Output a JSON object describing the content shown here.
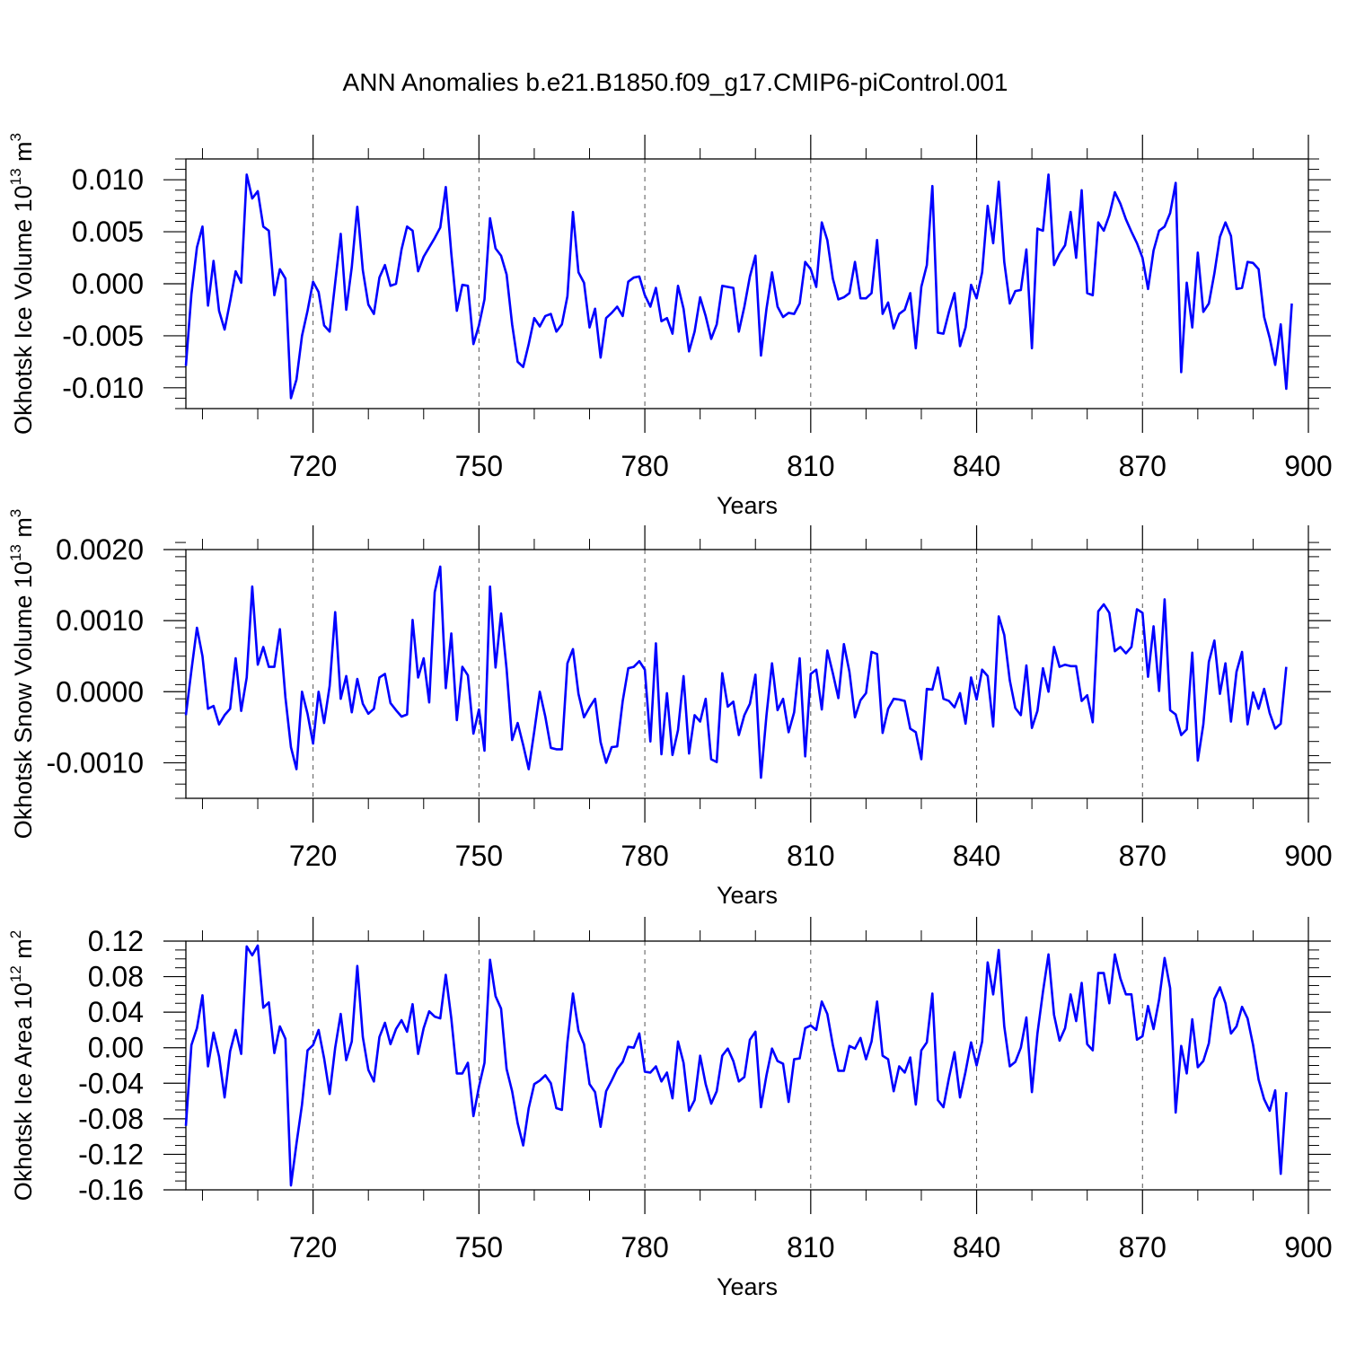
{
  "title": "ANN Anomalies b.e21.B1850.f09_g17.CMIP6-piControl.001",
  "line_color": "#0000ff",
  "chart_data": [
    {
      "type": "line",
      "ylabel_main": "Okhotsk Ice Volume 10",
      "ylabel_exp": "13",
      "ylabel_unit": " m",
      "ylabel_unit_exp": "3",
      "xlabel": "Years",
      "xlim": [
        697,
        900
      ],
      "ylim": [
        -0.012,
        0.012
      ],
      "xticks": [
        720,
        750,
        780,
        810,
        840,
        870,
        900
      ],
      "xtick_labels": [
        "720",
        "750",
        "780",
        "810",
        "840",
        "870",
        "900"
      ],
      "yticks": [
        -0.01,
        -0.005,
        0.0,
        0.005,
        0.01
      ],
      "ytick_labels": [
        "-0.010",
        "-0.005",
        "0.000",
        "0.005",
        "0.010"
      ],
      "yminor": 0.001,
      "x_start": 697,
      "values": [
        -0.0079,
        -0.001,
        0.0035,
        0.0055,
        -0.0021,
        0.0022,
        -0.0026,
        -0.0044,
        -0.0017,
        0.0012,
        0.0001,
        0.0105,
        0.0082,
        0.0089,
        0.0055,
        0.0051,
        -0.0011,
        0.0014,
        0.0005,
        -0.011,
        -0.0092,
        -0.005,
        -0.0026,
        0.0002,
        -0.0008,
        -0.004,
        -0.0046,
        0.0001,
        0.0048,
        -0.0025,
        0.0016,
        0.0074,
        0.0013,
        -0.002,
        -0.0029,
        0.0006,
        0.0018,
        -0.0002,
        0.0,
        0.0033,
        0.0055,
        0.0051,
        0.0012,
        0.0026,
        0.0035,
        0.0044,
        0.0054,
        0.0093,
        0.0029,
        -0.0026,
        -0.0001,
        -0.0002,
        -0.0058,
        -0.004,
        -0.0015,
        0.0063,
        0.0034,
        0.0027,
        0.0009,
        -0.0039,
        -0.0075,
        -0.008,
        -0.0058,
        -0.0033,
        -0.0041,
        -0.0031,
        -0.0029,
        -0.0046,
        -0.0039,
        -0.0012,
        0.0069,
        0.0011,
        0.0001,
        -0.0042,
        -0.0024,
        -0.0071,
        -0.0033,
        -0.0028,
        -0.0022,
        -0.0031,
        0.0002,
        0.0006,
        0.0007,
        -0.0011,
        -0.0022,
        -0.0004,
        -0.0036,
        -0.0033,
        -0.0048,
        -0.0002,
        -0.0024,
        -0.0065,
        -0.0046,
        -0.0013,
        -0.0031,
        -0.0053,
        -0.0039,
        -0.0002,
        -0.0003,
        -0.0004,
        -0.0046,
        -0.0022,
        0.0007,
        0.0027,
        -0.0069,
        -0.0024,
        0.0011,
        -0.0022,
        -0.0032,
        -0.0028,
        -0.0029,
        -0.0019,
        0.0021,
        0.0014,
        -0.0003,
        0.0059,
        0.0042,
        0.0005,
        -0.0015,
        -0.0013,
        -0.0009,
        0.0021,
        -0.0014,
        -0.0014,
        -0.0009,
        0.0042,
        -0.0029,
        -0.0018,
        -0.0043,
        -0.0029,
        -0.0025,
        -0.0009,
        -0.0062,
        -0.0003,
        0.0018,
        0.0094,
        -0.0047,
        -0.0048,
        -0.0027,
        -0.0009,
        -0.006,
        -0.0042,
        -0.0001,
        -0.0014,
        0.0011,
        0.0075,
        0.0039,
        0.0098,
        0.0021,
        -0.0019,
        -0.0007,
        -0.0006,
        0.0033,
        -0.0062,
        0.0053,
        0.0051,
        0.0105,
        0.0018,
        0.0029,
        0.0037,
        0.0069,
        0.0025,
        0.009,
        -0.0009,
        -0.0011,
        0.0059,
        0.0051,
        0.0066,
        0.0088,
        0.0077,
        0.0062,
        0.005,
        0.0039,
        0.0025,
        -0.0005,
        0.0032,
        0.0051,
        0.0055,
        0.0068,
        0.0097,
        -0.0085,
        0.0001,
        -0.0042,
        0.003,
        -0.0027,
        -0.0019,
        0.001,
        0.0045,
        0.0059,
        0.0046,
        -0.0005,
        -0.0004,
        0.0021,
        0.002,
        0.0014,
        -0.0032,
        -0.0052,
        -0.0078,
        -0.0039,
        -0.0101,
        -0.0019
      ]
    },
    {
      "type": "line",
      "ylabel_main": "Okhotsk Snow Volume 10",
      "ylabel_exp": "13",
      "ylabel_unit": " m",
      "ylabel_unit_exp": "3",
      "xlabel": "Years",
      "xlim": [
        697,
        900
      ],
      "ylim": [
        -0.0015,
        0.002
      ],
      "xticks": [
        720,
        750,
        780,
        810,
        840,
        870,
        900
      ],
      "xtick_labels": [
        "720",
        "750",
        "780",
        "810",
        "840",
        "870",
        "900"
      ],
      "yticks": [
        -0.001,
        0.0,
        0.001,
        0.002
      ],
      "ytick_labels": [
        "-0.0010",
        "0.0000",
        "0.0010",
        "0.0020"
      ],
      "yminor": 0.0002,
      "x_start": 697,
      "values": [
        -0.00033,
        0.0003,
        0.0009,
        0.0005,
        -0.00024,
        -0.0002,
        -0.00046,
        -0.00033,
        -0.00024,
        0.00047,
        -0.00027,
        0.0002,
        0.00148,
        0.00038,
        0.00063,
        0.00035,
        0.00035,
        0.00088,
        -8e-05,
        -0.00078,
        -0.00109,
        0.0,
        -0.00031,
        -0.00073,
        0.0,
        -0.00044,
        8e-05,
        0.00112,
        -0.0001,
        0.00022,
        -0.00029,
        0.00018,
        -0.00017,
        -0.00031,
        -0.00024,
        0.0002,
        0.00025,
        -0.00016,
        -0.00026,
        -0.00035,
        -0.00032,
        0.00101,
        0.0002,
        0.00047,
        -0.00015,
        0.0014,
        0.00176,
        5e-05,
        0.00082,
        -0.0004,
        0.00035,
        0.00023,
        -0.00059,
        -0.00025,
        -0.00083,
        0.00148,
        0.00034,
        0.0011,
        0.00032,
        -0.00068,
        -0.00044,
        -0.00075,
        -0.00109,
        -0.00056,
        0.0,
        -0.00035,
        -0.00079,
        -0.00081,
        -0.00081,
        0.0004,
        0.0006,
        -3e-05,
        -0.00036,
        -0.00022,
        -0.0001,
        -0.00071,
        -0.001,
        -0.00078,
        -0.00077,
        -0.00013,
        0.00033,
        0.00035,
        0.00043,
        0.00031,
        -0.0007,
        0.00068,
        -0.00088,
        -2e-05,
        -0.00089,
        -0.00054,
        0.00022,
        -0.00087,
        -0.00033,
        -0.00042,
        -0.0001,
        -0.00095,
        -0.00099,
        0.00026,
        -0.00021,
        -0.00014,
        -0.00061,
        -0.00033,
        -0.00017,
        0.00024,
        -0.00121,
        -0.00033,
        0.0004,
        -0.00026,
        -0.0001,
        -0.00057,
        -0.00029,
        0.00047,
        -0.00091,
        0.00025,
        0.00031,
        -0.00025,
        0.00058,
        0.00026,
        -9e-05,
        0.00067,
        0.00028,
        -0.00036,
        -0.00012,
        -2e-05,
        0.00056,
        0.00053,
        -0.00058,
        -0.00024,
        -0.0001,
        -0.00011,
        -0.00013,
        -0.00052,
        -0.00057,
        -0.00095,
        4e-05,
        3e-05,
        0.00034,
        -0.0001,
        -0.00013,
        -0.00022,
        -2e-05,
        -0.00045,
        0.0002,
        -0.00011,
        0.00031,
        0.00022,
        -0.00049,
        0.00106,
        0.0008,
        0.00016,
        -0.00023,
        -0.00033,
        0.00037,
        -0.00051,
        -0.00027,
        0.00033,
        0.0,
        0.00063,
        0.00035,
        0.00038,
        0.00036,
        0.00036,
        -0.00013,
        -5e-05,
        -0.00043,
        0.00113,
        0.00123,
        0.00111,
        0.00057,
        0.00063,
        0.00054,
        0.00063,
        0.00116,
        0.00111,
        0.00021,
        0.00092,
        1e-05,
        0.0013,
        -0.00026,
        -0.00032,
        -0.00061,
        -0.00053,
        0.00055,
        -0.00097,
        -0.00046,
        0.00042,
        0.00072,
        -3e-05,
        0.0004,
        -0.00042,
        0.00028,
        0.00056,
        -0.00046,
        -1e-05,
        -0.00024,
        4e-05,
        -0.0003,
        -0.00052,
        -0.00045,
        0.00035
      ]
    },
    {
      "type": "line",
      "ylabel_main": "Okhotsk Ice Area 10",
      "ylabel_exp": "12",
      "ylabel_unit": " m",
      "ylabel_unit_exp": "2",
      "xlabel": "Years",
      "xlim": [
        697,
        900
      ],
      "ylim": [
        -0.16,
        0.12
      ],
      "xticks": [
        720,
        750,
        780,
        810,
        840,
        870,
        900
      ],
      "xtick_labels": [
        "720",
        "750",
        "780",
        "810",
        "840",
        "870",
        "900"
      ],
      "yticks": [
        -0.16,
        -0.12,
        -0.08,
        -0.04,
        0.0,
        0.04,
        0.08,
        0.12
      ],
      "ytick_labels": [
        "-0.16",
        "-0.12",
        "-0.08",
        "-0.04",
        "0.00",
        "0.04",
        "0.08",
        "0.12"
      ],
      "yminor": 0.01,
      "x_start": 697,
      "values": [
        -0.088,
        0.003,
        0.022,
        0.059,
        -0.021,
        0.017,
        -0.01,
        -0.056,
        -0.004,
        0.02,
        -0.007,
        0.114,
        0.104,
        0.115,
        0.045,
        0.051,
        -0.006,
        0.024,
        0.01,
        -0.155,
        -0.108,
        -0.064,
        -0.003,
        0.003,
        0.02,
        -0.012,
        -0.052,
        0.0,
        0.038,
        -0.014,
        0.007,
        0.092,
        0.012,
        -0.025,
        -0.038,
        0.012,
        0.028,
        0.004,
        0.021,
        0.031,
        0.018,
        0.049,
        -0.007,
        0.022,
        0.041,
        0.035,
        0.033,
        0.082,
        0.033,
        -0.029,
        -0.029,
        -0.017,
        -0.077,
        -0.044,
        -0.017,
        0.099,
        0.058,
        0.044,
        -0.024,
        -0.049,
        -0.085,
        -0.11,
        -0.068,
        -0.041,
        -0.037,
        -0.031,
        -0.04,
        -0.068,
        -0.07,
        0.006,
        0.061,
        0.019,
        0.004,
        -0.041,
        -0.05,
        -0.089,
        -0.049,
        -0.037,
        -0.024,
        -0.016,
        0.001,
        0.0,
        0.016,
        -0.027,
        -0.028,
        -0.021,
        -0.038,
        -0.028,
        -0.057,
        0.007,
        -0.017,
        -0.071,
        -0.059,
        -0.009,
        -0.041,
        -0.063,
        -0.049,
        -0.009,
        -0.001,
        -0.015,
        -0.038,
        -0.033,
        0.009,
        0.018,
        -0.067,
        -0.031,
        -0.001,
        -0.015,
        -0.018,
        -0.061,
        -0.013,
        -0.012,
        0.022,
        0.025,
        0.02,
        0.052,
        0.038,
        0.003,
        -0.026,
        -0.026,
        0.002,
        -0.001,
        0.011,
        -0.013,
        0.007,
        0.052,
        -0.009,
        -0.013,
        -0.049,
        -0.021,
        -0.028,
        -0.011,
        -0.064,
        -0.003,
        0.006,
        0.061,
        -0.059,
        -0.067,
        -0.034,
        -0.005,
        -0.056,
        -0.027,
        0.006,
        -0.02,
        0.007,
        0.096,
        0.06,
        0.11,
        0.024,
        -0.021,
        -0.016,
        0.0,
        0.034,
        -0.05,
        0.016,
        0.063,
        0.105,
        0.037,
        0.008,
        0.022,
        0.06,
        0.03,
        0.073,
        0.004,
        -0.003,
        0.084,
        0.084,
        0.05,
        0.105,
        0.078,
        0.06,
        0.06,
        0.009,
        0.013,
        0.047,
        0.021,
        0.054,
        0.101,
        0.067,
        -0.073,
        0.002,
        -0.029,
        0.032,
        -0.022,
        -0.015,
        0.005,
        0.055,
        0.068,
        0.05,
        0.016,
        0.024,
        0.046,
        0.033,
        0.003,
        -0.036,
        -0.058,
        -0.071,
        -0.048,
        -0.142,
        -0.05
      ]
    }
  ]
}
